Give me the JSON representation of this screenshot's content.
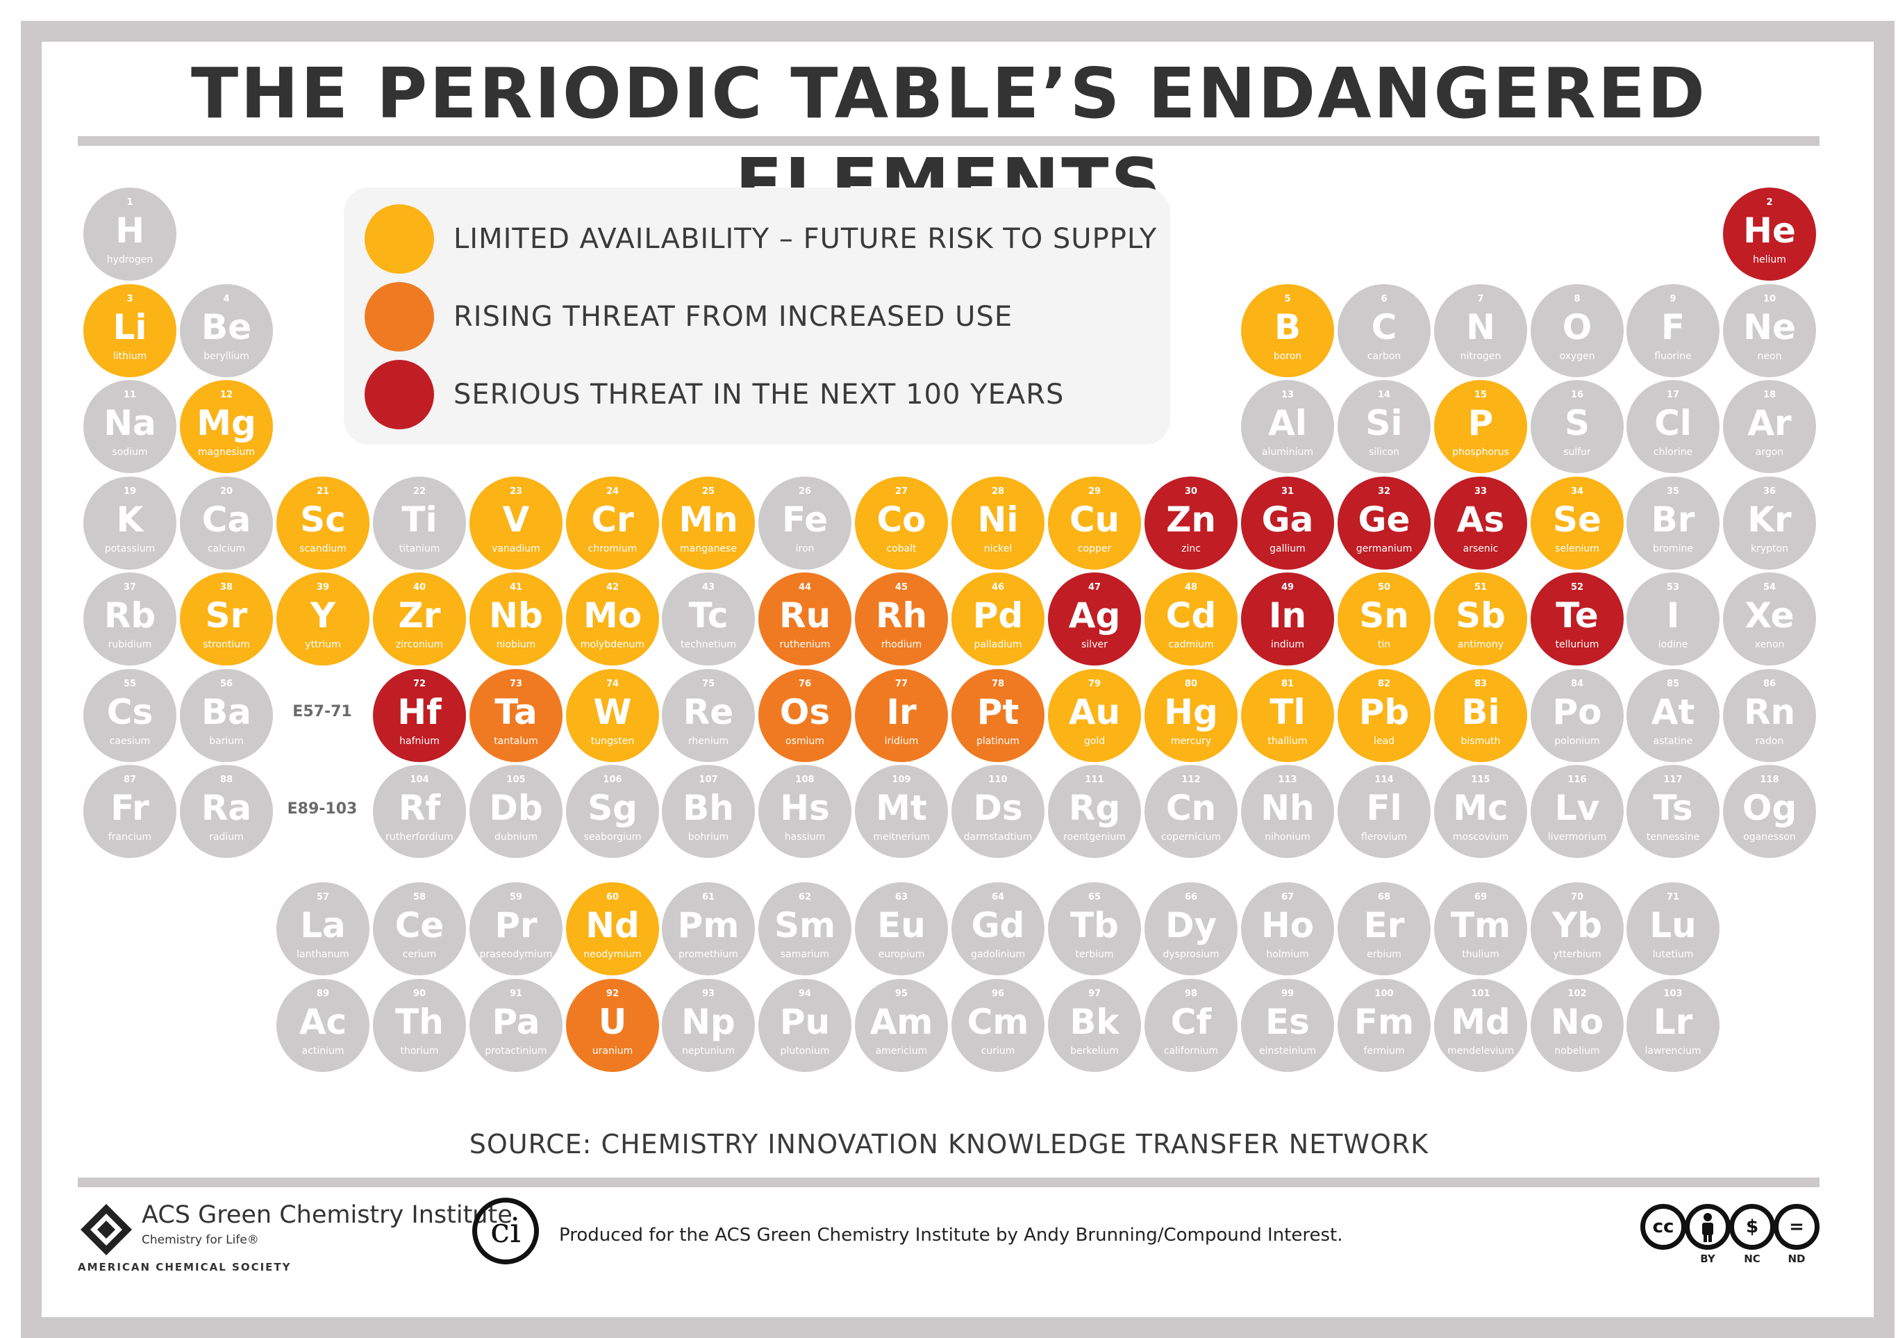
{
  "title": "THE PERIODIC TABLE’S ENDANGERED ELEMENTS",
  "colors": {
    "stable": "#cdcacb",
    "limited": "#fbb315",
    "rising": "#f07a21",
    "serious": "#c01d25",
    "frame": "#cdc9ca"
  },
  "legend": [
    {
      "key": "limited",
      "label": "LIMITED AVAILABILITY – FUTURE RISK TO SUPPLY"
    },
    {
      "key": "rising",
      "label": "RISING THREAT FROM INCREASED USE"
    },
    {
      "key": "serious",
      "label": "SERIOUS THREAT IN THE NEXT 100 YEARS"
    }
  ],
  "row_labels": {
    "lanthanides": "E57-71",
    "actinides": "E89-103"
  },
  "elements": [
    {
      "n": 1,
      "sym": "H",
      "name": "hydrogen",
      "status": "stable"
    },
    {
      "n": 2,
      "sym": "He",
      "name": "helium",
      "status": "serious"
    },
    {
      "n": 3,
      "sym": "Li",
      "name": "lithium",
      "status": "limited"
    },
    {
      "n": 4,
      "sym": "Be",
      "name": "beryllium",
      "status": "stable"
    },
    {
      "n": 5,
      "sym": "B",
      "name": "boron",
      "status": "limited"
    },
    {
      "n": 6,
      "sym": "C",
      "name": "carbon",
      "status": "stable"
    },
    {
      "n": 7,
      "sym": "N",
      "name": "nitrogen",
      "status": "stable"
    },
    {
      "n": 8,
      "sym": "O",
      "name": "oxygen",
      "status": "stable"
    },
    {
      "n": 9,
      "sym": "F",
      "name": "fluorine",
      "status": "stable"
    },
    {
      "n": 10,
      "sym": "Ne",
      "name": "neon",
      "status": "stable"
    },
    {
      "n": 11,
      "sym": "Na",
      "name": "sodium",
      "status": "stable"
    },
    {
      "n": 12,
      "sym": "Mg",
      "name": "magnesium",
      "status": "limited"
    },
    {
      "n": 13,
      "sym": "Al",
      "name": "aluminium",
      "status": "stable"
    },
    {
      "n": 14,
      "sym": "Si",
      "name": "silicon",
      "status": "stable"
    },
    {
      "n": 15,
      "sym": "P",
      "name": "phosphorus",
      "status": "limited"
    },
    {
      "n": 16,
      "sym": "S",
      "name": "sulfur",
      "status": "stable"
    },
    {
      "n": 17,
      "sym": "Cl",
      "name": "chlorine",
      "status": "stable"
    },
    {
      "n": 18,
      "sym": "Ar",
      "name": "argon",
      "status": "stable"
    },
    {
      "n": 19,
      "sym": "K",
      "name": "potassium",
      "status": "stable"
    },
    {
      "n": 20,
      "sym": "Ca",
      "name": "calcium",
      "status": "stable"
    },
    {
      "n": 21,
      "sym": "Sc",
      "name": "scandium",
      "status": "limited"
    },
    {
      "n": 22,
      "sym": "Ti",
      "name": "titanium",
      "status": "stable"
    },
    {
      "n": 23,
      "sym": "V",
      "name": "vanadium",
      "status": "limited"
    },
    {
      "n": 24,
      "sym": "Cr",
      "name": "chromium",
      "status": "limited"
    },
    {
      "n": 25,
      "sym": "Mn",
      "name": "manganese",
      "status": "limited"
    },
    {
      "n": 26,
      "sym": "Fe",
      "name": "iron",
      "status": "stable"
    },
    {
      "n": 27,
      "sym": "Co",
      "name": "cobalt",
      "status": "limited"
    },
    {
      "n": 28,
      "sym": "Ni",
      "name": "nickel",
      "status": "limited"
    },
    {
      "n": 29,
      "sym": "Cu",
      "name": "copper",
      "status": "limited"
    },
    {
      "n": 30,
      "sym": "Zn",
      "name": "zinc",
      "status": "serious"
    },
    {
      "n": 31,
      "sym": "Ga",
      "name": "gallium",
      "status": "serious"
    },
    {
      "n": 32,
      "sym": "Ge",
      "name": "germanium",
      "status": "serious"
    },
    {
      "n": 33,
      "sym": "As",
      "name": "arsenic",
      "status": "serious"
    },
    {
      "n": 34,
      "sym": "Se",
      "name": "selenium",
      "status": "limited"
    },
    {
      "n": 35,
      "sym": "Br",
      "name": "bromine",
      "status": "stable"
    },
    {
      "n": 36,
      "sym": "Kr",
      "name": "krypton",
      "status": "stable"
    },
    {
      "n": 37,
      "sym": "Rb",
      "name": "rubidium",
      "status": "stable"
    },
    {
      "n": 38,
      "sym": "Sr",
      "name": "strontium",
      "status": "limited"
    },
    {
      "n": 39,
      "sym": "Y",
      "name": "yttrium",
      "status": "limited"
    },
    {
      "n": 40,
      "sym": "Zr",
      "name": "zirconium",
      "status": "limited"
    },
    {
      "n": 41,
      "sym": "Nb",
      "name": "niobium",
      "status": "limited"
    },
    {
      "n": 42,
      "sym": "Mo",
      "name": "molybdenum",
      "status": "limited"
    },
    {
      "n": 43,
      "sym": "Tc",
      "name": "technetium",
      "status": "stable"
    },
    {
      "n": 44,
      "sym": "Ru",
      "name": "ruthenium",
      "status": "rising"
    },
    {
      "n": 45,
      "sym": "Rh",
      "name": "rhodium",
      "status": "rising"
    },
    {
      "n": 46,
      "sym": "Pd",
      "name": "palladium",
      "status": "limited"
    },
    {
      "n": 47,
      "sym": "Ag",
      "name": "silver",
      "status": "serious"
    },
    {
      "n": 48,
      "sym": "Cd",
      "name": "cadmium",
      "status": "limited"
    },
    {
      "n": 49,
      "sym": "In",
      "name": "indium",
      "status": "serious"
    },
    {
      "n": 50,
      "sym": "Sn",
      "name": "tin",
      "status": "limited"
    },
    {
      "n": 51,
      "sym": "Sb",
      "name": "antimony",
      "status": "limited"
    },
    {
      "n": 52,
      "sym": "Te",
      "name": "tellurium",
      "status": "serious"
    },
    {
      "n": 53,
      "sym": "I",
      "name": "iodine",
      "status": "stable"
    },
    {
      "n": 54,
      "sym": "Xe",
      "name": "xenon",
      "status": "stable"
    },
    {
      "n": 55,
      "sym": "Cs",
      "name": "caesium",
      "status": "stable"
    },
    {
      "n": 56,
      "sym": "Ba",
      "name": "barium",
      "status": "stable"
    },
    {
      "n": 72,
      "sym": "Hf",
      "name": "hafnium",
      "status": "serious"
    },
    {
      "n": 73,
      "sym": "Ta",
      "name": "tantalum",
      "status": "rising"
    },
    {
      "n": 74,
      "sym": "W",
      "name": "tungsten",
      "status": "limited"
    },
    {
      "n": 75,
      "sym": "Re",
      "name": "rhenium",
      "status": "stable"
    },
    {
      "n": 76,
      "sym": "Os",
      "name": "osmium",
      "status": "rising"
    },
    {
      "n": 77,
      "sym": "Ir",
      "name": "iridium",
      "status": "rising"
    },
    {
      "n": 78,
      "sym": "Pt",
      "name": "platinum",
      "status": "rising"
    },
    {
      "n": 79,
      "sym": "Au",
      "name": "gold",
      "status": "limited"
    },
    {
      "n": 80,
      "sym": "Hg",
      "name": "mercury",
      "status": "limited"
    },
    {
      "n": 81,
      "sym": "Tl",
      "name": "thallium",
      "status": "limited"
    },
    {
      "n": 82,
      "sym": "Pb",
      "name": "lead",
      "status": "limited"
    },
    {
      "n": 83,
      "sym": "Bi",
      "name": "bismuth",
      "status": "limited"
    },
    {
      "n": 84,
      "sym": "Po",
      "name": "polonium",
      "status": "stable"
    },
    {
      "n": 85,
      "sym": "At",
      "name": "astatine",
      "status": "stable"
    },
    {
      "n": 86,
      "sym": "Rn",
      "name": "radon",
      "status": "stable"
    },
    {
      "n": 87,
      "sym": "Fr",
      "name": "francium",
      "status": "stable"
    },
    {
      "n": 88,
      "sym": "Ra",
      "name": "radium",
      "status": "stable"
    },
    {
      "n": 104,
      "sym": "Rf",
      "name": "rutherfordium",
      "status": "stable"
    },
    {
      "n": 105,
      "sym": "Db",
      "name": "dubnium",
      "status": "stable"
    },
    {
      "n": 106,
      "sym": "Sg",
      "name": "seaborgium",
      "status": "stable"
    },
    {
      "n": 107,
      "sym": "Bh",
      "name": "bohrium",
      "status": "stable"
    },
    {
      "n": 108,
      "sym": "Hs",
      "name": "hassium",
      "status": "stable"
    },
    {
      "n": 109,
      "sym": "Mt",
      "name": "meitnerium",
      "status": "stable"
    },
    {
      "n": 110,
      "sym": "Ds",
      "name": "darmstadtium",
      "status": "stable"
    },
    {
      "n": 111,
      "sym": "Rg",
      "name": "roentgenium",
      "status": "stable"
    },
    {
      "n": 112,
      "sym": "Cn",
      "name": "copernicium",
      "status": "stable"
    },
    {
      "n": 113,
      "sym": "Nh",
      "name": "nihonium",
      "status": "stable"
    },
    {
      "n": 114,
      "sym": "Fl",
      "name": "flerovium",
      "status": "stable"
    },
    {
      "n": 115,
      "sym": "Mc",
      "name": "moscovium",
      "status": "stable"
    },
    {
      "n": 116,
      "sym": "Lv",
      "name": "livermorium",
      "status": "stable"
    },
    {
      "n": 117,
      "sym": "Ts",
      "name": "tennessine",
      "status": "stable"
    },
    {
      "n": 118,
      "sym": "Og",
      "name": "oganesson",
      "status": "stable"
    },
    {
      "n": 57,
      "sym": "La",
      "name": "lanthanum",
      "status": "stable"
    },
    {
      "n": 58,
      "sym": "Ce",
      "name": "cerium",
      "status": "stable"
    },
    {
      "n": 59,
      "sym": "Pr",
      "name": "praseodymium",
      "status": "stable"
    },
    {
      "n": 60,
      "sym": "Nd",
      "name": "neodymium",
      "status": "limited"
    },
    {
      "n": 61,
      "sym": "Pm",
      "name": "promethium",
      "status": "stable"
    },
    {
      "n": 62,
      "sym": "Sm",
      "name": "samarium",
      "status": "stable"
    },
    {
      "n": 63,
      "sym": "Eu",
      "name": "europium",
      "status": "stable"
    },
    {
      "n": 64,
      "sym": "Gd",
      "name": "gadolinium",
      "status": "stable"
    },
    {
      "n": 65,
      "sym": "Tb",
      "name": "terbium",
      "status": "stable"
    },
    {
      "n": 66,
      "sym": "Dy",
      "name": "dysprosium",
      "status": "stable"
    },
    {
      "n": 67,
      "sym": "Ho",
      "name": "holmium",
      "status": "stable"
    },
    {
      "n": 68,
      "sym": "Er",
      "name": "erbium",
      "status": "stable"
    },
    {
      "n": 69,
      "sym": "Tm",
      "name": "thulium",
      "status": "stable"
    },
    {
      "n": 70,
      "sym": "Yb",
      "name": "ytterbium",
      "status": "stable"
    },
    {
      "n": 71,
      "sym": "Lu",
      "name": "lutetium",
      "status": "stable"
    },
    {
      "n": 89,
      "sym": "Ac",
      "name": "actinium",
      "status": "stable"
    },
    {
      "n": 90,
      "sym": "Th",
      "name": "thorium",
      "status": "stable"
    },
    {
      "n": 91,
      "sym": "Pa",
      "name": "protactinium",
      "status": "stable"
    },
    {
      "n": 92,
      "sym": "U",
      "name": "uranium",
      "status": "rising"
    },
    {
      "n": 93,
      "sym": "Np",
      "name": "neptunium",
      "status": "stable"
    },
    {
      "n": 94,
      "sym": "Pu",
      "name": "plutonium",
      "status": "stable"
    },
    {
      "n": 95,
      "sym": "Am",
      "name": "americium",
      "status": "stable"
    },
    {
      "n": 96,
      "sym": "Cm",
      "name": "curium",
      "status": "stable"
    },
    {
      "n": 97,
      "sym": "Bk",
      "name": "berkelium",
      "status": "stable"
    },
    {
      "n": 98,
      "sym": "Cf",
      "name": "californium",
      "status": "stable"
    },
    {
      "n": 99,
      "sym": "Es",
      "name": "einsteinium",
      "status": "stable"
    },
    {
      "n": 100,
      "sym": "Fm",
      "name": "fermium",
      "status": "stable"
    },
    {
      "n": 101,
      "sym": "Md",
      "name": "mendelevium",
      "status": "stable"
    },
    {
      "n": 102,
      "sym": "No",
      "name": "nobelium",
      "status": "stable"
    },
    {
      "n": 103,
      "sym": "Lr",
      "name": "lawrencium",
      "status": "stable"
    }
  ],
  "source": "SOURCE: CHEMISTRY INNOVATION KNOWLEDGE TRANSFER NETWORK",
  "footer": {
    "acs_title": "ACS Green Chemistry Institute",
    "acs_tagline": "Chemistry for Life®",
    "acs_society": "AMERICAN CHEMICAL SOCIETY",
    "ci_mark": "ci",
    "credit": "Produced for the ACS Green Chemistry Institute by Andy Brunning/Compound Interest.",
    "license": [
      {
        "icon": "cc",
        "label": ""
      },
      {
        "icon": "by",
        "label": "BY"
      },
      {
        "icon": "nc",
        "label": "NC"
      },
      {
        "icon": "nd",
        "label": "ND"
      }
    ]
  }
}
